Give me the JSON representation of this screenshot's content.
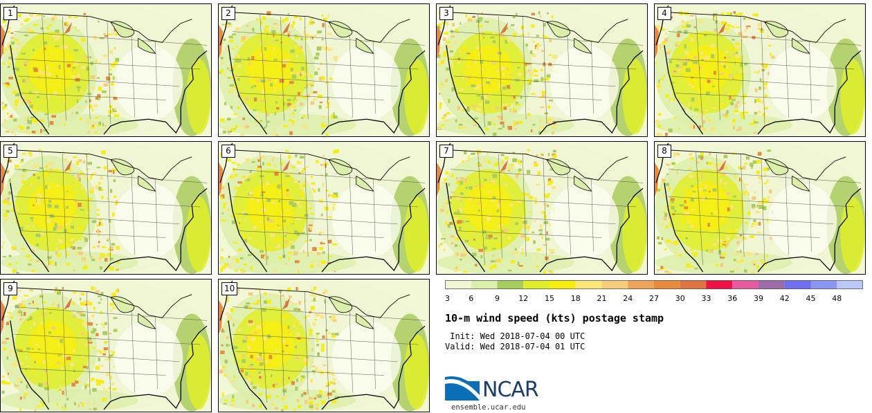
{
  "panels": [
    {
      "label": "1"
    },
    {
      "label": "2"
    },
    {
      "label": "3"
    },
    {
      "label": "4"
    },
    {
      "label": "5"
    },
    {
      "label": "6"
    },
    {
      "label": "7"
    },
    {
      "label": "8"
    },
    {
      "label": "9"
    },
    {
      "label": "10"
    }
  ],
  "colorbar": {
    "ticks": [
      "3",
      "6",
      "9",
      "12",
      "15",
      "18",
      "21",
      "24",
      "27",
      "30",
      "33",
      "36",
      "39",
      "42",
      "45",
      "48"
    ],
    "colors": [
      "#f0f6d4",
      "#dcefaa",
      "#a9cc5e",
      "#dfee28",
      "#f7ee10",
      "#fbe67a",
      "#f6cc7c",
      "#eda35a",
      "#e68a3b",
      "#db7440",
      "#ee1144",
      "#e65aa0",
      "#9b6baa",
      "#6f6ff0",
      "#8a96f4",
      "#bac8f8"
    ]
  },
  "title": "10-m wind speed (kts) postage stamp",
  "init": " Init: Wed 2018-07-04 00 UTC",
  "valid": "Valid: Wed 2018-07-04 01 UTC",
  "logo": {
    "text": "NCAR",
    "site": "ensemble.ucar.edu"
  }
}
